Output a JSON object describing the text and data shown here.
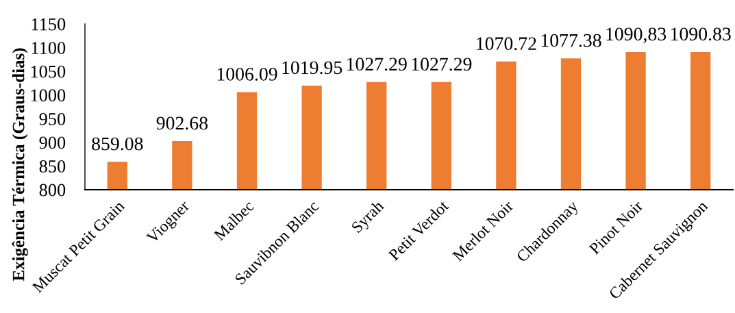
{
  "chart_data": {
    "type": "bar",
    "ylabel": "Exigência Térmica (Graus-dias)",
    "categories": [
      "Muscat Petit Grain",
      "Viogner",
      "Malbec",
      "Sauvibnon Blanc",
      "Syrah",
      "Petit Verdot",
      "Merlot Noir",
      "Chardonnay",
      "Pinot Noir",
      "Cabernet Sauvignon"
    ],
    "values": [
      859.08,
      902.68,
      1006.09,
      1019.95,
      1027.29,
      1027.29,
      1070.72,
      1077.38,
      1090.83,
      1090.83
    ],
    "value_labels": [
      "859.08",
      "902.68",
      "1006.09",
      "1019.95",
      "1027.29",
      "1027.29",
      "1070.72",
      "1077.38",
      "1090,83",
      "1090.83"
    ],
    "color": "#ed7d31",
    "ylim": [
      800,
      1150
    ],
    "yticks": [
      800,
      850,
      900,
      950,
      1000,
      1050,
      1100,
      1150
    ]
  }
}
